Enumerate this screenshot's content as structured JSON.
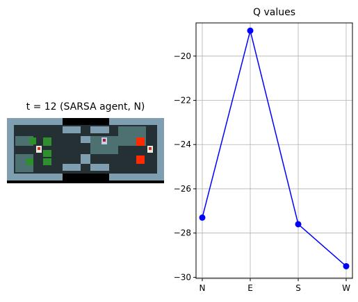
{
  "game_panel": {
    "title": "t = 12 (SARSA agent, N)"
  },
  "chart_data": {
    "type": "line",
    "title": "Q values",
    "xlabel": "",
    "ylabel": "",
    "categories": [
      "N",
      "E",
      "S",
      "W"
    ],
    "values": [
      -27.3,
      -18.85,
      -27.6,
      -29.5
    ],
    "ylim": [
      -30.05,
      -18.5
    ],
    "yticks": [
      -30,
      -28,
      -26,
      -24,
      -22,
      -20
    ],
    "ytick_labels": [
      "−30",
      "−28",
      "−26",
      "−24",
      "−22",
      "−20"
    ],
    "grid": true,
    "line_color": "#0000ff",
    "marker": "circle"
  },
  "colors": {
    "wall": "#7f9fb0",
    "wall_dark": "#3f5766",
    "floor": "#243033",
    "highlight": "#4d7070",
    "goal": "#ff2a00",
    "plant": "#2f8f2f",
    "void": "#000000"
  }
}
